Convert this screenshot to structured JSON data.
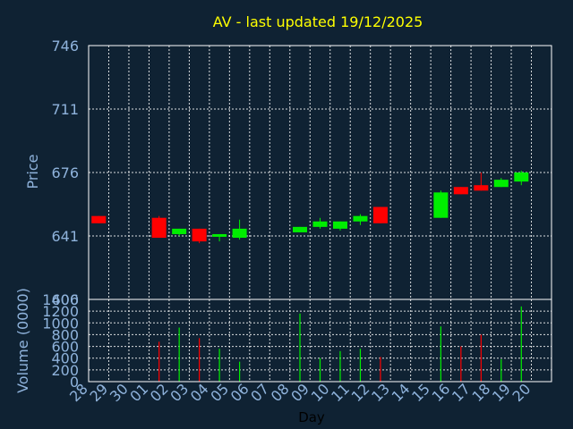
{
  "chart_data": {
    "type": "candlestick",
    "title": "AV - last updated 19/12/2025",
    "price_panel": {
      "ylabel": "Price",
      "ylim": [
        606,
        746
      ],
      "yticks": [
        606,
        641,
        676,
        711,
        746
      ],
      "ytick_labels": [
        "606",
        "641",
        "676",
        "711",
        "746"
      ]
    },
    "volume_panel": {
      "ylabel": "Volume (0000)",
      "ylim": [
        0,
        1400
      ],
      "yticks": [
        0,
        200,
        400,
        600,
        800,
        1000,
        1200,
        1400
      ],
      "ytick_labels": [
        "0",
        "200",
        "400",
        "600",
        "800",
        "1000",
        "1200",
        "1400"
      ]
    },
    "xlabel": "Day",
    "x_ticks": [
      "28",
      "29",
      "30",
      "01",
      "02",
      "03",
      "04",
      "05",
      "06",
      "07",
      "08",
      "09",
      "10",
      "11",
      "12",
      "13",
      "14",
      "15",
      "16",
      "17",
      "18",
      "19",
      "20"
    ],
    "grid": true,
    "up_color": "#00ee00",
    "down_color": "#ff0000",
    "candles": [
      {
        "day": "28",
        "open": 652,
        "high": 652,
        "low": 648,
        "close": 648
      },
      {
        "day": "01",
        "open": 651,
        "high": 652,
        "low": 640,
        "close": 640
      },
      {
        "day": "02",
        "open": 642,
        "high": 645,
        "low": 641,
        "close": 645
      },
      {
        "day": "03",
        "open": 645,
        "high": 645,
        "low": 637,
        "close": 638
      },
      {
        "day": "04",
        "open": 641,
        "high": 642,
        "low": 638,
        "close": 642
      },
      {
        "day": "05",
        "open": 640,
        "high": 650,
        "low": 639,
        "close": 645
      },
      {
        "day": "08",
        "open": 643,
        "high": 646,
        "low": 643,
        "close": 646
      },
      {
        "day": "09",
        "open": 646,
        "high": 651,
        "low": 645,
        "close": 649
      },
      {
        "day": "10",
        "open": 645,
        "high": 649,
        "low": 644,
        "close": 649
      },
      {
        "day": "11",
        "open": 649,
        "high": 653,
        "low": 647,
        "close": 652
      },
      {
        "day": "12",
        "open": 657,
        "high": 657,
        "low": 648,
        "close": 648
      },
      {
        "day": "15",
        "open": 651,
        "high": 666,
        "low": 651,
        "close": 665
      },
      {
        "day": "16",
        "open": 668,
        "high": 668,
        "low": 664,
        "close": 664
      },
      {
        "day": "17",
        "open": 669,
        "high": 676,
        "low": 666,
        "close": 666
      },
      {
        "day": "18",
        "open": 668,
        "high": 673,
        "low": 668,
        "close": 672
      },
      {
        "day": "19",
        "open": 671,
        "high": 677,
        "low": 669,
        "close": 676
      }
    ],
    "volume": [
      {
        "day": "01",
        "value": 680,
        "color": "#ff0000"
      },
      {
        "day": "02",
        "value": 920,
        "color": "#00ee00"
      },
      {
        "day": "03",
        "value": 740,
        "color": "#ff0000"
      },
      {
        "day": "04",
        "value": 560,
        "color": "#00ee00"
      },
      {
        "day": "05",
        "value": 340,
        "color": "#00ee00"
      },
      {
        "day": "08",
        "value": 1160,
        "color": "#00ee00"
      },
      {
        "day": "09",
        "value": 400,
        "color": "#00ee00"
      },
      {
        "day": "10",
        "value": 520,
        "color": "#00ee00"
      },
      {
        "day": "11",
        "value": 560,
        "color": "#00ee00"
      },
      {
        "day": "12",
        "value": 420,
        "color": "#ff0000"
      },
      {
        "day": "15",
        "value": 940,
        "color": "#00ee00"
      },
      {
        "day": "16",
        "value": 600,
        "color": "#ff0000"
      },
      {
        "day": "17",
        "value": 800,
        "color": "#ff0000"
      },
      {
        "day": "18",
        "value": 380,
        "color": "#00ee00"
      },
      {
        "day": "19",
        "value": 1280,
        "color": "#00ee00"
      }
    ]
  }
}
